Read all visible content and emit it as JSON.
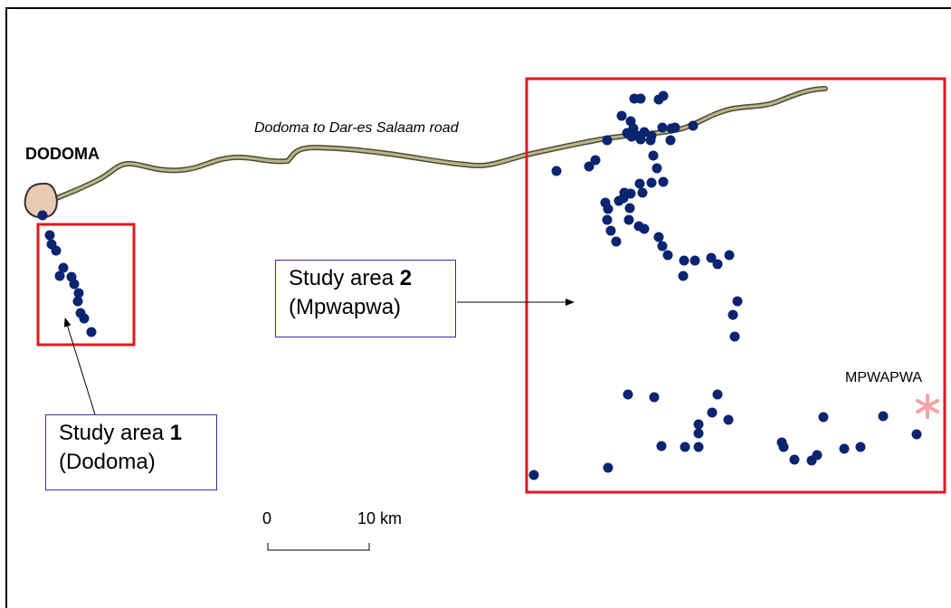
{
  "map": {
    "city_label": "DODOMA",
    "road_label": "Dodoma to Dar-es Salaam road",
    "town_label": "MPWAPWA",
    "town_marker_icon": "asterisk-icon",
    "study_area_1": {
      "title": "Study area",
      "number": "1",
      "subtitle": "(Dodoma)"
    },
    "study_area_2": {
      "title": "Study area",
      "number": "2",
      "subtitle": "(Mpwapwa)"
    },
    "scale_bar": {
      "start_label": "0",
      "end_label": "10 km"
    },
    "colors": {
      "study_box": "#e0191e",
      "sample_point": "#0a2470",
      "road_fill": "#b9b68a",
      "road_edge": "#4d4a33",
      "city_fill": "#e8c9b2",
      "town_marker": "#f4a3a6",
      "label_border": "#3333aa"
    }
  }
}
